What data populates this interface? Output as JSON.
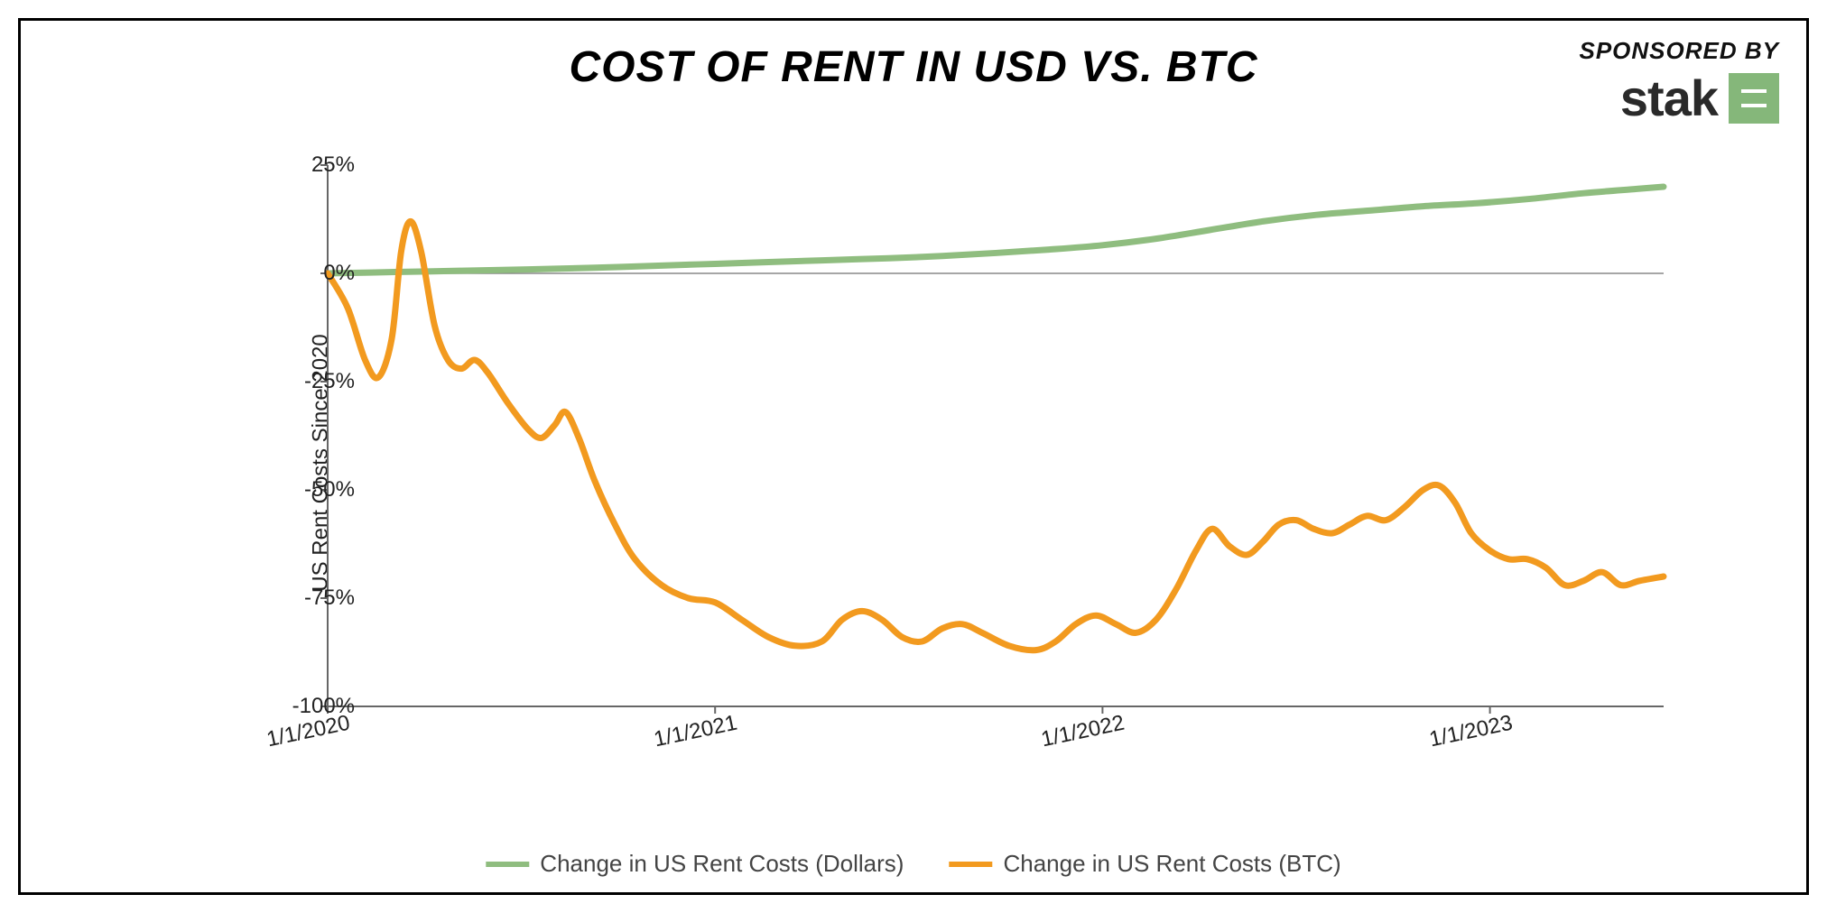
{
  "title": "COST OF RENT IN USD VS. BTC",
  "sponsor": {
    "label": "SPONSORED BY",
    "name": "stak"
  },
  "chart": {
    "type": "line",
    "ylabel": "US Rent Costs Since 2020",
    "ylim": [
      -100,
      25
    ],
    "ytick_step": 25,
    "yticks": [
      25,
      0,
      -25,
      -50,
      -75,
      -100
    ],
    "ytick_labels": [
      "25%",
      "0%",
      "-25%",
      "-50%",
      "-75%",
      "-100%"
    ],
    "xticks": [
      "1/1/2020",
      "1/1/2021",
      "1/1/2022",
      "1/1/2023"
    ],
    "xtick_positions": [
      0,
      0.29,
      0.58,
      0.87
    ],
    "background_color": "#ffffff",
    "axis_color": "#666666",
    "zero_line_color": "#888888",
    "title_fontsize": 48,
    "label_fontsize": 24,
    "tick_fontsize": 24,
    "legend_fontsize": 26,
    "line_width": 7,
    "series": [
      {
        "name": "Change in US Rent Costs (Dollars)",
        "color": "#8fbd7f",
        "data": [
          [
            0.0,
            0
          ],
          [
            0.05,
            0.3
          ],
          [
            0.1,
            0.6
          ],
          [
            0.15,
            0.9
          ],
          [
            0.2,
            1.3
          ],
          [
            0.25,
            1.8
          ],
          [
            0.29,
            2.2
          ],
          [
            0.33,
            2.6
          ],
          [
            0.37,
            3.0
          ],
          [
            0.42,
            3.5
          ],
          [
            0.46,
            4.0
          ],
          [
            0.5,
            4.7
          ],
          [
            0.54,
            5.5
          ],
          [
            0.58,
            6.5
          ],
          [
            0.62,
            8.0
          ],
          [
            0.66,
            10.0
          ],
          [
            0.7,
            12.0
          ],
          [
            0.74,
            13.5
          ],
          [
            0.78,
            14.5
          ],
          [
            0.82,
            15.5
          ],
          [
            0.86,
            16.2
          ],
          [
            0.9,
            17.2
          ],
          [
            0.94,
            18.5
          ],
          [
            0.98,
            19.5
          ],
          [
            1.0,
            20.0
          ]
        ]
      },
      {
        "name": "Change in US Rent Costs (BTC)",
        "color": "#f29a1f",
        "data": [
          [
            0.0,
            0
          ],
          [
            0.015,
            -8
          ],
          [
            0.028,
            -20
          ],
          [
            0.038,
            -24
          ],
          [
            0.048,
            -15
          ],
          [
            0.055,
            5
          ],
          [
            0.062,
            12
          ],
          [
            0.07,
            5
          ],
          [
            0.08,
            -12
          ],
          [
            0.09,
            -20
          ],
          [
            0.1,
            -22
          ],
          [
            0.11,
            -20
          ],
          [
            0.12,
            -23
          ],
          [
            0.135,
            -30
          ],
          [
            0.15,
            -36
          ],
          [
            0.16,
            -38
          ],
          [
            0.17,
            -35
          ],
          [
            0.178,
            -32
          ],
          [
            0.188,
            -38
          ],
          [
            0.2,
            -48
          ],
          [
            0.215,
            -58
          ],
          [
            0.23,
            -66
          ],
          [
            0.25,
            -72
          ],
          [
            0.27,
            -75
          ],
          [
            0.29,
            -76
          ],
          [
            0.31,
            -80
          ],
          [
            0.33,
            -84
          ],
          [
            0.35,
            -86
          ],
          [
            0.37,
            -85
          ],
          [
            0.385,
            -80
          ],
          [
            0.4,
            -78
          ],
          [
            0.415,
            -80
          ],
          [
            0.43,
            -84
          ],
          [
            0.445,
            -85
          ],
          [
            0.46,
            -82
          ],
          [
            0.475,
            -81
          ],
          [
            0.49,
            -83
          ],
          [
            0.51,
            -86
          ],
          [
            0.53,
            -87
          ],
          [
            0.545,
            -85
          ],
          [
            0.56,
            -81
          ],
          [
            0.575,
            -79
          ],
          [
            0.59,
            -81
          ],
          [
            0.605,
            -83
          ],
          [
            0.62,
            -80
          ],
          [
            0.635,
            -73
          ],
          [
            0.65,
            -64
          ],
          [
            0.662,
            -59
          ],
          [
            0.675,
            -63
          ],
          [
            0.688,
            -65
          ],
          [
            0.7,
            -62
          ],
          [
            0.712,
            -58
          ],
          [
            0.725,
            -57
          ],
          [
            0.738,
            -59
          ],
          [
            0.752,
            -60
          ],
          [
            0.765,
            -58
          ],
          [
            0.778,
            -56
          ],
          [
            0.792,
            -57
          ],
          [
            0.806,
            -54
          ],
          [
            0.82,
            -50
          ],
          [
            0.832,
            -49
          ],
          [
            0.844,
            -53
          ],
          [
            0.856,
            -60
          ],
          [
            0.87,
            -64
          ],
          [
            0.884,
            -66
          ],
          [
            0.898,
            -66
          ],
          [
            0.912,
            -68
          ],
          [
            0.926,
            -72
          ],
          [
            0.94,
            -71
          ],
          [
            0.954,
            -69
          ],
          [
            0.968,
            -72
          ],
          [
            0.982,
            -71
          ],
          [
            1.0,
            -70
          ]
        ]
      }
    ],
    "legend_items": [
      {
        "label": "Change in US Rent Costs (Dollars)",
        "color": "#8fbd7f"
      },
      {
        "label": "Change in US Rent Costs (BTC)",
        "color": "#f29a1f"
      }
    ]
  }
}
